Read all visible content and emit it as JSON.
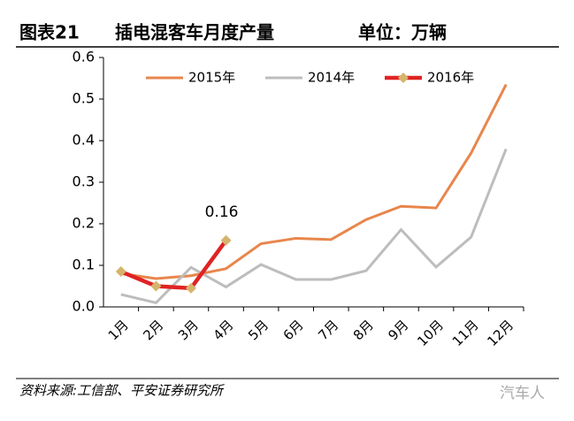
{
  "header": {
    "figure": "图表21",
    "title": "插电混客车月度产量",
    "unit": "单位：万辆"
  },
  "chart_data": {
    "type": "line",
    "categories": [
      "1月",
      "2月",
      "3月",
      "4月",
      "5月",
      "6月",
      "7月",
      "8月",
      "9月",
      "10月",
      "11月",
      "12月"
    ],
    "series": [
      {
        "name": "2015年",
        "color": "#e8864c",
        "values": [
          0.08,
          0.068,
          0.075,
          0.092,
          0.152,
          0.165,
          0.162,
          0.21,
          0.242,
          0.238,
          0.37,
          0.535
        ]
      },
      {
        "name": "2014年",
        "color": "#bdbdbd",
        "values": [
          0.03,
          0.01,
          0.095,
          0.048,
          0.102,
          0.066,
          0.066,
          0.087,
          0.186,
          0.096,
          0.168,
          0.38
        ]
      },
      {
        "name": "2016年",
        "color": "#e02323",
        "marker_color": "#d6b46c",
        "values": [
          0.085,
          0.05,
          0.045,
          0.16,
          null,
          null,
          null,
          null,
          null,
          null,
          null,
          null
        ]
      }
    ],
    "annotations": [
      {
        "text": "0.16",
        "series": 2,
        "index": 3
      }
    ],
    "ylim": [
      0,
      0.6
    ],
    "yticks": [
      {
        "value": 0,
        "label": "0.0"
      },
      0.1,
      0.2,
      0.3,
      0.4,
      0.5,
      0.6
    ],
    "legend": "top"
  },
  "footer": {
    "source": "资料来源:工信部、平安证券研究所",
    "watermark": "汽车人"
  }
}
